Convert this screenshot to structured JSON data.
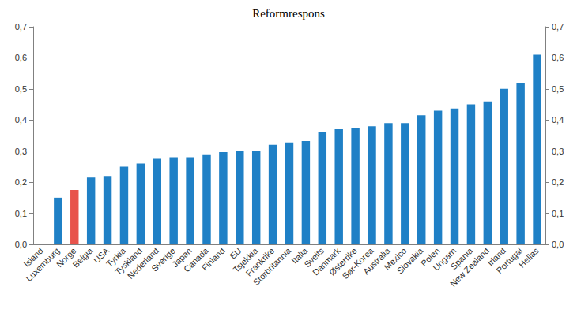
{
  "chart_data": {
    "type": "bar",
    "title": "Reformrespons",
    "categories": [
      "Island",
      "Luxemburg",
      "Norge",
      "Belgia",
      "USA",
      "Tyrkia",
      "Tyskland",
      "Nederland",
      "Sverige",
      "Japan",
      "Canada",
      "Finland",
      "EU",
      "Tsjekkia",
      "Frankrike",
      "Storbritannia",
      "Italia",
      "Sveits",
      "Danmark",
      "Østerrike",
      "Sør-Korea",
      "Australia",
      "Mexico",
      "Slovakia",
      "Polen",
      "Ungarn",
      "Spania",
      "New Zealand",
      "Irland",
      "Portugal",
      "Hellas"
    ],
    "values": [
      null,
      0.15,
      0.175,
      0.215,
      0.22,
      0.25,
      0.26,
      0.275,
      0.28,
      0.28,
      0.29,
      0.297,
      0.3,
      0.3,
      0.32,
      0.328,
      0.332,
      0.36,
      0.37,
      0.375,
      0.38,
      0.39,
      0.39,
      0.415,
      0.43,
      0.437,
      0.45,
      0.46,
      0.5,
      0.52,
      0.61
    ],
    "colors": [
      "#1f80c6",
      "#1f80c6",
      "#e8534b",
      "#1f80c6",
      "#1f80c6",
      "#1f80c6",
      "#1f80c6",
      "#1f80c6",
      "#1f80c6",
      "#1f80c6",
      "#1f80c6",
      "#1f80c6",
      "#1f80c6",
      "#1f80c6",
      "#1f80c6",
      "#1f80c6",
      "#1f80c6",
      "#1f80c6",
      "#1f80c6",
      "#1f80c6",
      "#1f80c6",
      "#1f80c6",
      "#1f80c6",
      "#1f80c6",
      "#1f80c6",
      "#1f80c6",
      "#1f80c6",
      "#1f80c6",
      "#1f80c6",
      "#1f80c6",
      "#1f80c6"
    ],
    "ylim": [
      0,
      0.7
    ],
    "yticks": [
      {
        "value": 0,
        "label": "0,0"
      },
      {
        "value": 0.1,
        "label": "0,1"
      },
      {
        "value": 0.2,
        "label": "0,2"
      },
      {
        "value": 0.3,
        "label": "0,3"
      },
      {
        "value": 0.4,
        "label": "0,4"
      },
      {
        "value": 0.5,
        "label": "0,5"
      },
      {
        "value": 0.6,
        "label": "0,6"
      },
      {
        "value": 0.7,
        "label": "0,7"
      }
    ],
    "grid": false
  }
}
